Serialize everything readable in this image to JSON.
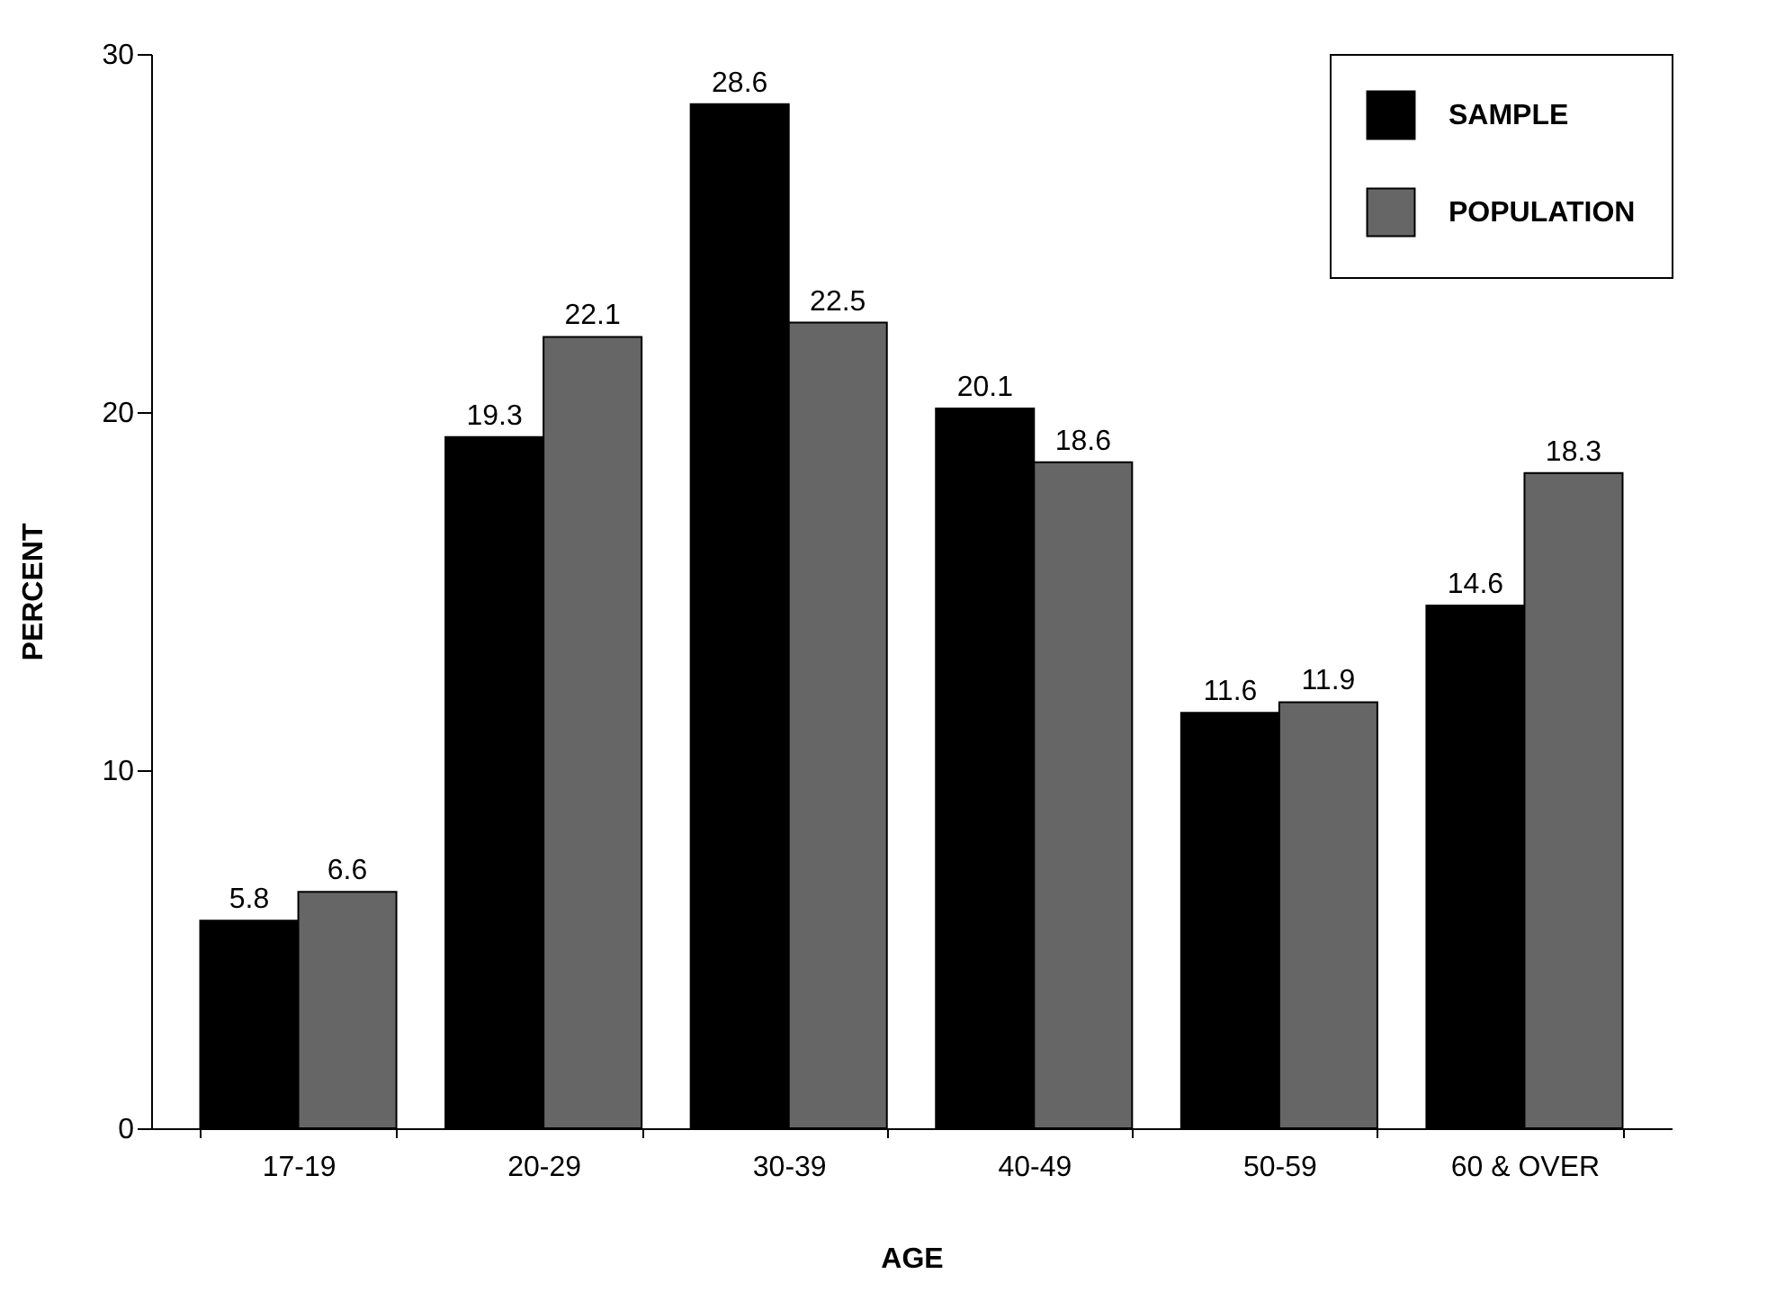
{
  "chart_data": {
    "type": "bar",
    "xlabel": "AGE",
    "ylabel": "PERCENT",
    "categories": [
      "17-19",
      "20-29",
      "30-39",
      "40-49",
      "50-59",
      "60 & OVER"
    ],
    "series": [
      {
        "name": "SAMPLE",
        "color": "#000000",
        "values": [
          5.8,
          19.3,
          28.6,
          20.1,
          11.6,
          14.6
        ]
      },
      {
        "name": "POPULATION",
        "color": "#666666",
        "values": [
          6.6,
          22.1,
          22.5,
          18.6,
          11.9,
          18.3
        ]
      }
    ],
    "ylim": [
      0,
      30
    ],
    "yticks": [
      0,
      10,
      20,
      30
    ],
    "grid": false,
    "legend": "top right",
    "data_labels": true
  }
}
